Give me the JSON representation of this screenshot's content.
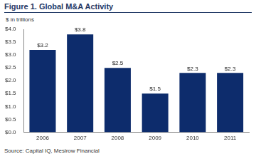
{
  "chart_data": {
    "type": "bar",
    "title": "Figure 1. Global M&A Activity",
    "y_label": "$ in trillions",
    "source": "Source: Capital IQ, Mesirow Financial",
    "categories": [
      "2006",
      "2007",
      "2008",
      "2009",
      "2010",
      "2011"
    ],
    "values": [
      3.2,
      3.8,
      2.5,
      1.5,
      2.3,
      2.3
    ],
    "value_labels": [
      "$3.2",
      "$3.8",
      "$2.5",
      "$1.5",
      "$2.3",
      "$2.3"
    ],
    "data_labels": true,
    "color": "#0d2c6c",
    "ylim": [
      0,
      4
    ],
    "yticks": [
      {
        "value": 0,
        "label": "$0.0"
      },
      {
        "value": 0.5,
        "label": "$0.5"
      },
      {
        "value": 1,
        "label": "$1.0"
      },
      {
        "value": 1.5,
        "label": "$1.5"
      },
      {
        "value": 2,
        "label": "$2.0"
      },
      {
        "value": 2.5,
        "label": "$2.5"
      },
      {
        "value": 3,
        "label": "$3.0"
      },
      {
        "value": 3.5,
        "label": "$3.5"
      },
      {
        "value": 4,
        "label": "$4.0"
      }
    ],
    "grid": false
  }
}
